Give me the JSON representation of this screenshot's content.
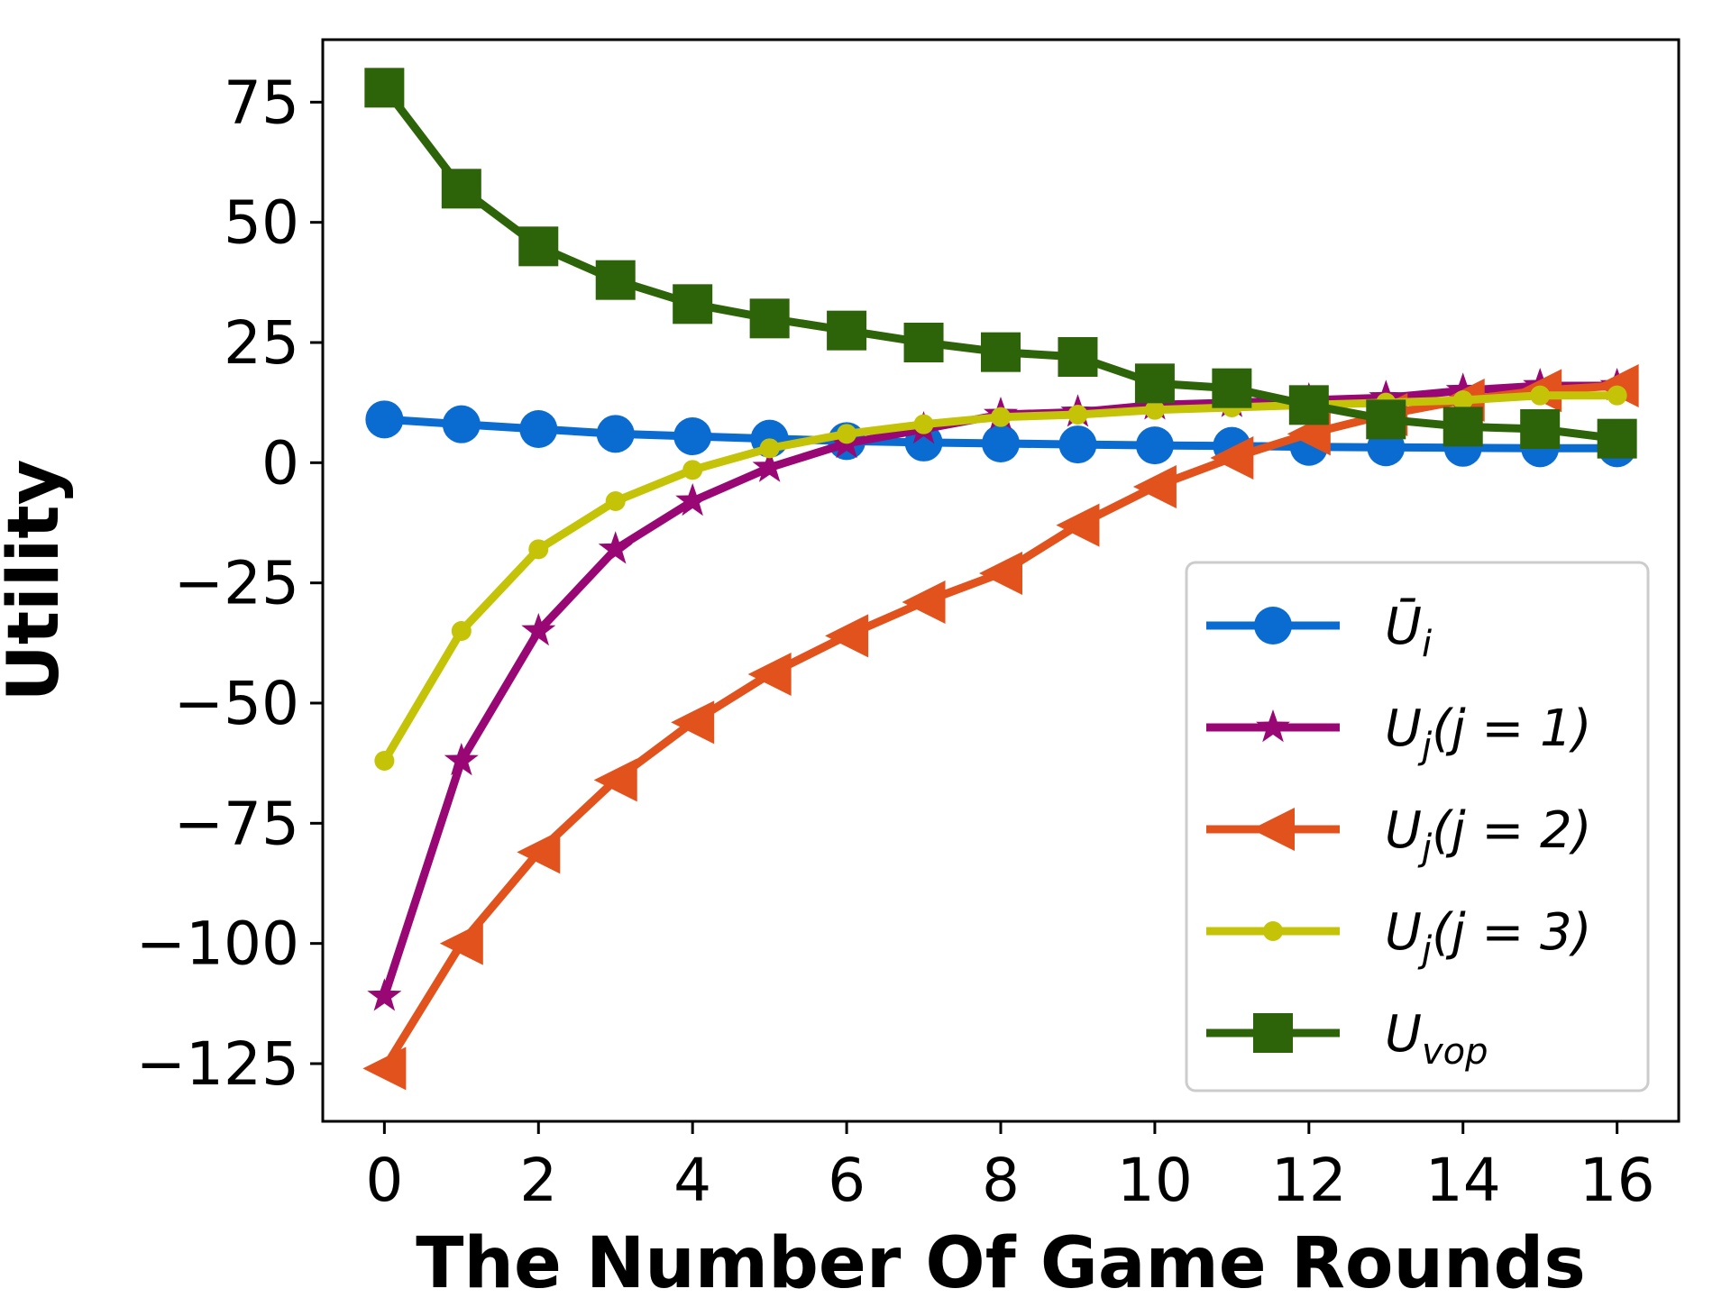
{
  "chart_data": {
    "type": "line",
    "title": "",
    "xlabel": "The Number Of Game Rounds",
    "ylabel": "Utility",
    "xlim": [
      -0.8,
      16.8
    ],
    "ylim": [
      -137,
      88
    ],
    "xticks": [
      0,
      2,
      4,
      6,
      8,
      10,
      12,
      14,
      16
    ],
    "yticks": [
      75,
      50,
      25,
      0,
      -25,
      -50,
      -75,
      -100,
      -125
    ],
    "ytick_labels": [
      "75",
      "50",
      "25",
      "0",
      "−25",
      "−50",
      "−75",
      "−100",
      "−125"
    ],
    "grid": false,
    "legend_position": "lower right",
    "x": [
      0,
      1,
      2,
      3,
      4,
      5,
      6,
      7,
      8,
      9,
      10,
      11,
      12,
      13,
      14,
      15,
      16
    ],
    "series": [
      {
        "name": "Ū_i",
        "legend": {
          "base": "Ū",
          "sub": "i",
          "rest": ""
        },
        "color": "#0a6bd1",
        "marker": "circle",
        "values": [
          9,
          8,
          7,
          6,
          5.5,
          5,
          4.5,
          4.2,
          4,
          3.8,
          3.6,
          3.5,
          3.3,
          3.2,
          3.1,
          3,
          3
        ]
      },
      {
        "name": "U_j(j = 1)",
        "legend": {
          "base": "U",
          "sub": "j",
          "rest": "(j = 1)"
        },
        "color": "#980774",
        "marker": "star",
        "values": [
          -111,
          -62,
          -35,
          -18,
          -8,
          -1,
          4,
          7,
          10,
          10.5,
          12,
          12.5,
          13,
          13.5,
          15,
          16,
          16
        ]
      },
      {
        "name": "U_j(j = 2)",
        "legend": {
          "base": "U",
          "sub": "j",
          "rest": "(j = 2)"
        },
        "color": "#e1521d",
        "marker": "triangle-left",
        "values": [
          -126,
          -100,
          -81,
          -66,
          -54,
          -44,
          -36,
          -29,
          -23,
          -13,
          -5,
          1,
          6,
          10,
          13,
          15,
          16
        ]
      },
      {
        "name": "U_j(j = 3)",
        "legend": {
          "base": "U",
          "sub": "j",
          "rest": "(j = 3)"
        },
        "color": "#c4c307",
        "marker": "small-circle",
        "values": [
          -62,
          -35,
          -18,
          -8,
          -1.5,
          3,
          6,
          8,
          9.5,
          10,
          11,
          11.5,
          12,
          12.5,
          13,
          14,
          14
        ]
      },
      {
        "name": "U_vop",
        "legend": {
          "base": "U",
          "sub": "vop",
          "rest": ""
        },
        "color": "#2e6409",
        "marker": "square",
        "values": [
          78,
          57,
          45,
          38,
          33,
          30,
          27.5,
          25,
          23,
          22,
          16.5,
          15.5,
          12,
          9,
          7.5,
          7,
          5
        ]
      }
    ]
  }
}
